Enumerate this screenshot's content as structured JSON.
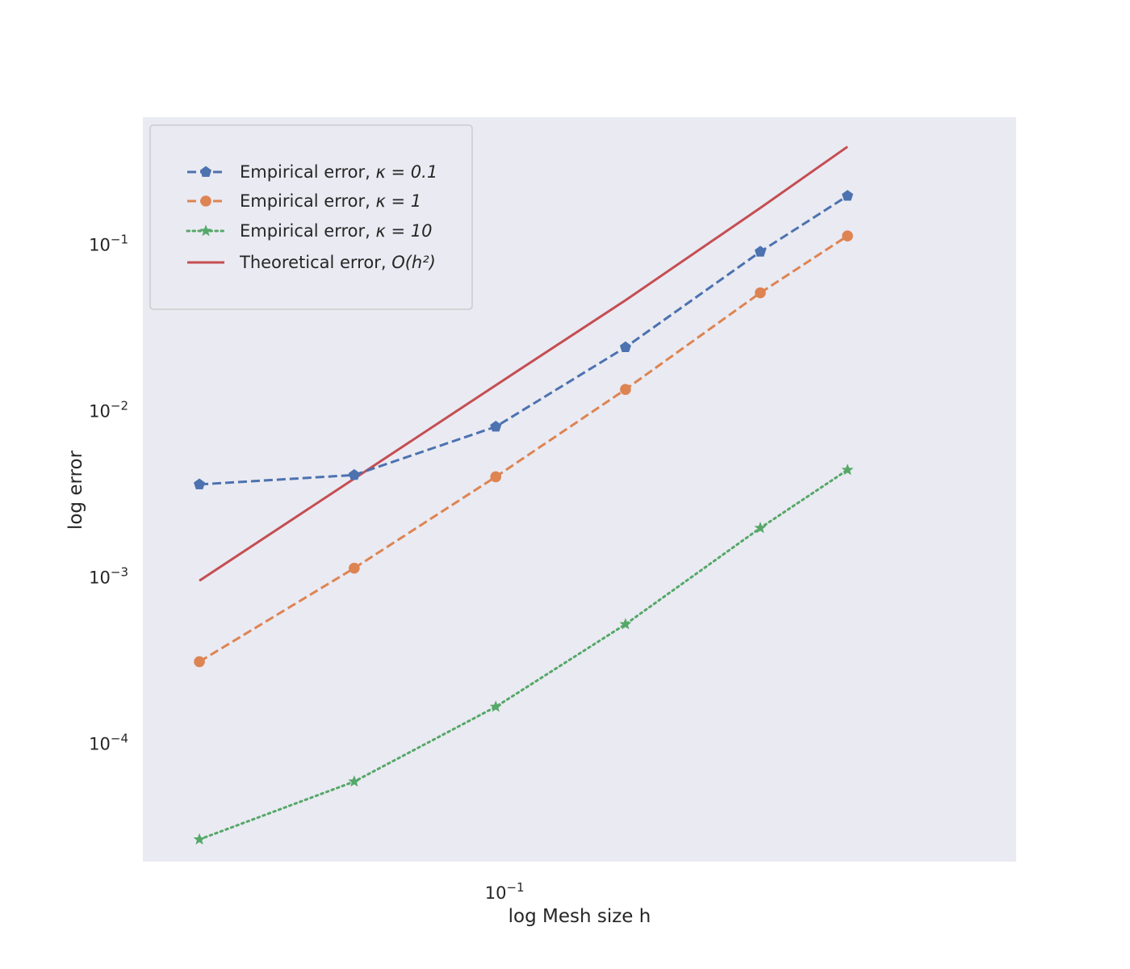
{
  "chart_data": {
    "type": "line",
    "xlabel": "log Mesh size h",
    "ylabel": "log error",
    "xscale": "log",
    "yscale": "log",
    "xlim": [
      0.0439,
      0.3276
    ],
    "ylim": [
      1.95e-05,
      0.58
    ],
    "grid": false,
    "legend_position": "top-left",
    "background_color": "#eaeaf2",
    "x": [
      0.05,
      0.0714,
      0.0989,
      0.1333,
      0.1818,
      0.2222
    ],
    "x_ticks": [
      {
        "value": 0.1,
        "base": "10",
        "exp": "−1"
      }
    ],
    "y_ticks": [
      {
        "value": 0.1,
        "base": "10",
        "exp": "−1"
      },
      {
        "value": 0.01,
        "base": "10",
        "exp": "−2"
      },
      {
        "value": 0.001,
        "base": "10",
        "exp": "−3"
      },
      {
        "value": 0.0001,
        "base": "10",
        "exp": "−4"
      }
    ],
    "series": [
      {
        "name": "Empirical error, κ = 0.1",
        "label_prefix": "Empirical error, ",
        "label_math": "κ = 0.1",
        "color": "#4c72b0",
        "dash": "dashed",
        "marker": "pentagon",
        "values": [
          0.0036,
          0.0041,
          0.008,
          0.024,
          0.09,
          0.195
        ]
      },
      {
        "name": "Empirical error, κ = 1",
        "label_prefix": "Empirical error, ",
        "label_math": "κ = 1",
        "color": "#dd8452",
        "dash": "dashed",
        "marker": "circle",
        "values": [
          0.00031,
          0.00113,
          0.004,
          0.0134,
          0.051,
          0.112
        ]
      },
      {
        "name": "Empirical error, κ = 10",
        "label_prefix": "Empirical error, ",
        "label_math": "κ = 10",
        "color": "#55a868",
        "dash": "dotted",
        "marker": "star",
        "values": [
          2.65e-05,
          5.9e-05,
          0.000166,
          0.00052,
          0.00197,
          0.0044
        ]
      },
      {
        "name": "Theoretical error, O(h²)",
        "label_prefix": "Theoretical error, ",
        "label_math": "O(h²)",
        "color": "#c44e52",
        "dash": "solid",
        "marker": "none",
        "values": [
          0.00095,
          0.0039,
          0.0142,
          0.046,
          0.165,
          0.385
        ]
      }
    ]
  }
}
